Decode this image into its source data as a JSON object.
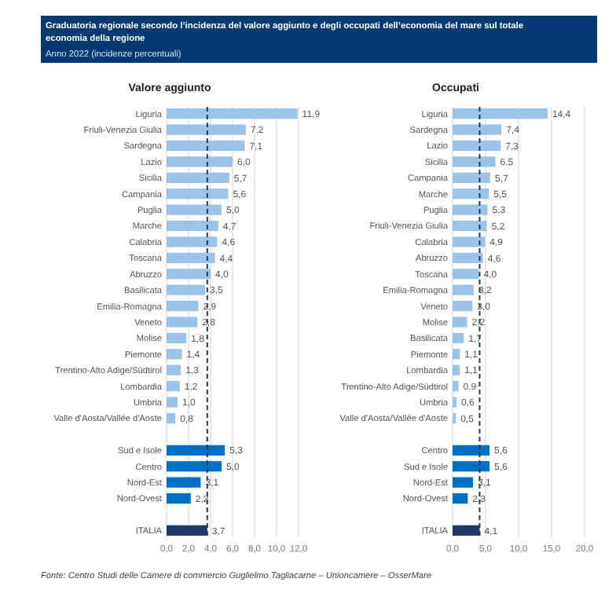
{
  "chart_data": [
    {
      "type": "bar",
      "orientation": "horizontal",
      "title": "Valore aggiunto",
      "annotations": [
        "Graduatoria regionale secondo l’incidenza del valore aggiunto e degli occupati dell’economia del mare sul totale economia della regione",
        "Anno 2022 (incidenze percentuali)",
        "Fonte: Centro Studi delle Camere di commercio Guglielmo Tagliacarne – Unioncamere – OsserMare"
      ],
      "categories": [
        "Liguria",
        "Friuli-Venezia Giulia",
        "Sardegna",
        "Lazio",
        "Sicilia",
        "Campania",
        "Puglia",
        "Marche",
        "Calabria",
        "Toscana",
        "Abruzzo",
        "Basilicata",
        "Emilia-Romagna",
        "Veneto",
        "Molise",
        "Piemonte",
        "Trentino-Alto Adige/Südtirol",
        "Lombardia",
        "Umbria",
        "Valle d'Aosta/Vallée d'Aoste",
        null,
        "Sud e Isole",
        "Centro",
        "Nord-Est",
        "Nord-Ovest",
        null,
        "ITALIA"
      ],
      "values": [
        11.9,
        7.2,
        7.1,
        6.0,
        5.7,
        5.6,
        5.0,
        4.7,
        4.6,
        4.4,
        4.0,
        3.5,
        2.9,
        2.8,
        1.8,
        1.4,
        1.3,
        1.2,
        1.0,
        0.8,
        null,
        5.3,
        5.0,
        3.1,
        2.2,
        null,
        3.7
      ],
      "value_labels": [
        "11,9",
        "7,2",
        "7,1",
        "6,0",
        "5,7",
        "5,6",
        "5,0",
        "4,7",
        "4,6",
        "4,4",
        "4,0",
        "3,5",
        "2,9",
        "2,8",
        "1,8",
        "1,4",
        "1,3",
        "1,2",
        "1,0",
        "0,8",
        null,
        "5,3",
        "5,0",
        "3,1",
        "2,2",
        null,
        "3,7"
      ],
      "colors": [
        "#9dc3e6",
        "#9dc3e6",
        "#9dc3e6",
        "#9dc3e6",
        "#9dc3e6",
        "#9dc3e6",
        "#9dc3e6",
        "#9dc3e6",
        "#9dc3e6",
        "#9dc3e6",
        "#9dc3e6",
        "#9dc3e6",
        "#9dc3e6",
        "#9dc3e6",
        "#9dc3e6",
        "#9dc3e6",
        "#9dc3e6",
        "#9dc3e6",
        "#9dc3e6",
        "#9dc3e6",
        null,
        "#0070c0",
        "#0070c0",
        "#0070c0",
        "#0070c0",
        null,
        "#1f3864"
      ],
      "xlim": [
        0,
        12
      ],
      "xticks": [
        {
          "value": 0,
          "label": "0,0"
        },
        {
          "value": 2,
          "label": "2,0"
        },
        {
          "value": 4,
          "label": "4,0"
        },
        {
          "value": 6,
          "label": "6,0"
        },
        {
          "value": 8,
          "label": "8,0"
        },
        {
          "value": 10,
          "label": "10,0"
        },
        {
          "value": 12,
          "label": "12,0"
        }
      ],
      "grid": "x",
      "ref_lines": [
        {
          "axis": "x",
          "value": 3.7,
          "color": "#1f3864",
          "line_style": "dashed"
        }
      ]
    },
    {
      "type": "bar",
      "orientation": "horizontal",
      "title": "Occupati",
      "categories": [
        "Liguria",
        "Sardegna",
        "Lazio",
        "Sicilia",
        "Campania",
        "Marche",
        "Puglia",
        "Friuli-Venezia Giulia",
        "Calabria",
        "Abruzzo",
        "Toscana",
        "Emilia-Romagna",
        "Veneto",
        "Molise",
        "Basilicata",
        "Piemonte",
        "Lombardia",
        "Trentino-Alto Adige/Südtirol",
        "Umbria",
        "Valle d'Aosta/Vallée d'Aoste",
        null,
        "Centro",
        "Sud e Isole",
        "Nord-Est",
        "Nord-Ovest",
        null,
        "ITALIA"
      ],
      "values": [
        14.4,
        7.4,
        7.3,
        6.5,
        5.7,
        5.5,
        5.3,
        5.2,
        4.9,
        4.6,
        4.0,
        3.2,
        3.0,
        2.2,
        1.7,
        1.1,
        1.1,
        0.9,
        0.6,
        0.5,
        null,
        5.6,
        5.6,
        3.1,
        2.3,
        null,
        4.1
      ],
      "value_labels": [
        "14,4",
        "7,4",
        "7,3",
        "6,5",
        "5,7",
        "5,5",
        "5,3",
        "5,2",
        "4,9",
        "4,6",
        "4,0",
        "3,2",
        "3,0",
        "2,2",
        "1,7",
        "1,1",
        "1,1",
        "0,9",
        "0,6",
        "0,5",
        null,
        "5,6",
        "5,6",
        "3,1",
        "2,3",
        null,
        "4,1"
      ],
      "colors": [
        "#9dc3e6",
        "#9dc3e6",
        "#9dc3e6",
        "#9dc3e6",
        "#9dc3e6",
        "#9dc3e6",
        "#9dc3e6",
        "#9dc3e6",
        "#9dc3e6",
        "#9dc3e6",
        "#9dc3e6",
        "#9dc3e6",
        "#9dc3e6",
        "#9dc3e6",
        "#9dc3e6",
        "#9dc3e6",
        "#9dc3e6",
        "#9dc3e6",
        "#9dc3e6",
        "#9dc3e6",
        null,
        "#0070c0",
        "#0070c0",
        "#0070c0",
        "#0070c0",
        null,
        "#1f3864"
      ],
      "xlim": [
        0,
        20
      ],
      "xticks": [
        {
          "value": 0,
          "label": "0,0"
        },
        {
          "value": 5,
          "label": "5,0"
        },
        {
          "value": 10,
          "label": "10,0"
        },
        {
          "value": 15,
          "label": "15,0"
        },
        {
          "value": 20,
          "label": "20,0"
        }
      ],
      "grid": "x",
      "ref_lines": [
        {
          "axis": "x",
          "value": 4.1,
          "color": "#1f3864",
          "line_style": "dashed"
        }
      ]
    }
  ]
}
